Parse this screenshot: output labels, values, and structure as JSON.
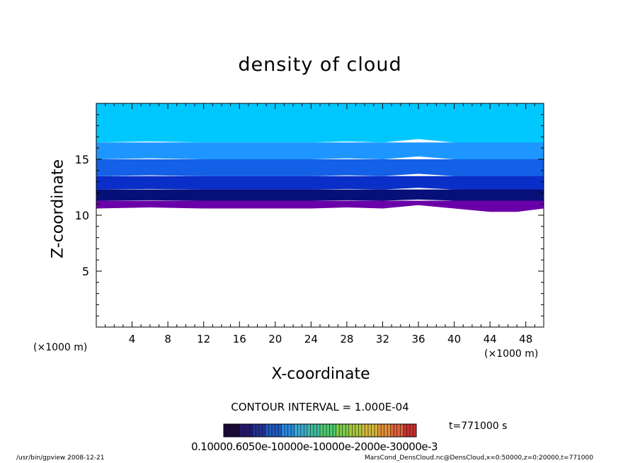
{
  "chart_data": {
    "type": "heatmap",
    "title": "density of cloud",
    "xlabel": "X-coordinate",
    "ylabel": "Z-coordinate",
    "x_unit": "(×1000 m)",
    "xlim": [
      0,
      50
    ],
    "ylim": [
      0,
      20
    ],
    "x_ticks": [
      4,
      8,
      12,
      16,
      20,
      24,
      28,
      32,
      36,
      40,
      44,
      48
    ],
    "y_ticks": [
      5,
      10,
      15
    ],
    "field": {
      "variable": "density of cloud",
      "min_value": 0.0001,
      "max_value": 0.0007,
      "top_value": 0.00064,
      "bands": [
        {
          "z_low": 16.5,
          "z_high": 20.0,
          "value": 0.00064,
          "color": "#00c8ff"
        },
        {
          "z_low": 15.0,
          "z_high": 16.5,
          "value": 0.00055,
          "color": "#1e96ff"
        },
        {
          "z_low": 13.5,
          "z_high": 15.0,
          "value": 0.00045,
          "color": "#1460e6"
        },
        {
          "z_low": 12.3,
          "z_high": 13.5,
          "value": 0.00032,
          "color": "#0a2ec8"
        },
        {
          "z_low": 11.3,
          "z_high": 12.3,
          "value": 0.0002,
          "color": "#061078"
        },
        {
          "z_low": 10.7,
          "z_high": 11.3,
          "value": 0.0001,
          "color": "#6a00a8"
        }
      ],
      "cloud_base": [
        {
          "x": 0,
          "z": 10.6
        },
        {
          "x": 6,
          "z": 10.7
        },
        {
          "x": 12,
          "z": 10.6
        },
        {
          "x": 20,
          "z": 10.6
        },
        {
          "x": 24,
          "z": 10.6
        },
        {
          "x": 28,
          "z": 10.7
        },
        {
          "x": 32,
          "z": 10.6
        },
        {
          "x": 36,
          "z": 10.9
        },
        {
          "x": 40,
          "z": 10.6
        },
        {
          "x": 44,
          "z": 10.3
        },
        {
          "x": 47,
          "z": 10.3
        },
        {
          "x": 50,
          "z": 10.6
        }
      ]
    },
    "contour_interval": "CONTOUR INTERVAL = 1.000E-04",
    "colorbar": {
      "labels_text": "0.10000.6050e-10000e-10000e-2000e-30000e-3",
      "colors": [
        "#1a0a3a",
        "#24186e",
        "#20309a",
        "#1c58c0",
        "#2a88d8",
        "#3aaad0",
        "#40bca0",
        "#50c870",
        "#7ccc4a",
        "#a8c83a",
        "#d0b83a",
        "#e0903a",
        "#e0603a",
        "#c83030"
      ]
    }
  },
  "time_label": "t=771000 s",
  "footer": {
    "left": "/usr/bin/gpview  2008-12-21",
    "right": "MarsCond_DensCloud.nc@DensCloud,x=0:50000,z=0:20000,t=771000"
  }
}
